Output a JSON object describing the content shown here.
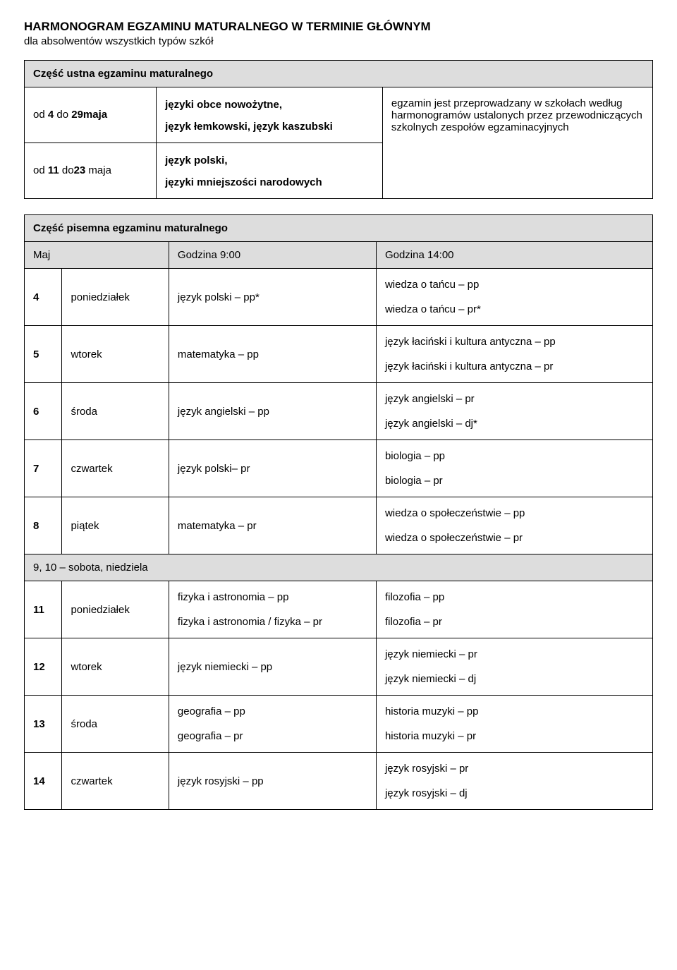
{
  "title": "HARMONOGRAM EGZAMINU MATURALNEGO W TERMINIE GŁÓWNYM",
  "subtitle": "dla absolwentów wszystkich typów szkół",
  "oral": {
    "header": "Część ustna egzaminu maturalnego",
    "rows": [
      {
        "period": "od 4 do 29maja",
        "subjects_1": "języki obce nowożytne,",
        "subjects_2": "język łemkowski, język kaszubski"
      },
      {
        "period": "od 11 do23 maja",
        "subjects_1": "język polski,",
        "subjects_2": "języki mniejszości narodowych"
      }
    ],
    "note": "egzamin jest przeprowadzany w szkołach według harmonogramów ustalonych przez przewodniczących szkolnych zespołów egzaminacyjnych"
  },
  "written": {
    "header": "Część pisemna egzaminu maturalnego",
    "col_month": "Maj",
    "col_time1": "Godzina 9:00",
    "col_time2": "Godzina 14:00",
    "rows": [
      {
        "n": "4",
        "day": "poniedziałek",
        "t9": [
          "język polski – pp*"
        ],
        "t14": [
          "wiedza o tańcu – pp",
          "wiedza o tańcu – pr*"
        ]
      },
      {
        "n": "5",
        "day": "wtorek",
        "t9": [
          "matematyka – pp"
        ],
        "t14": [
          "język łaciński i kultura antyczna – pp",
          "język łaciński i kultura antyczna – pr"
        ]
      },
      {
        "n": "6",
        "day": "środa",
        "t9": [
          "język angielski – pp"
        ],
        "t14": [
          "język angielski – pr",
          "język angielski – dj*"
        ]
      },
      {
        "n": "7",
        "day": "czwartek",
        "t9": [
          "język polski– pr"
        ],
        "t14": [
          "biologia – pp",
          "biologia – pr"
        ]
      },
      {
        "n": "8",
        "day": "piątek",
        "t9": [
          "matematyka – pr"
        ],
        "t14": [
          "wiedza o społeczeństwie – pp",
          "wiedza o społeczeństwie – pr"
        ]
      }
    ],
    "weekend": "9, 10 – sobota, niedziela",
    "rows2": [
      {
        "n": "11",
        "day": "poniedziałek",
        "t9": [
          "fizyka i astronomia – pp",
          "fizyka i astronomia / fizyka – pr"
        ],
        "t14": [
          "filozofia – pp",
          "filozofia – pr"
        ]
      },
      {
        "n": "12",
        "day": "wtorek",
        "t9": [
          "język niemiecki – pp"
        ],
        "t14": [
          "język niemiecki – pr",
          "język niemiecki – dj"
        ]
      },
      {
        "n": "13",
        "day": "środa",
        "t9": [
          "geografia – pp",
          "geografia – pr"
        ],
        "t14": [
          "historia muzyki – pp",
          " historia muzyki – pr"
        ]
      },
      {
        "n": "14",
        "day": "czwartek",
        "t9": [
          "język rosyjski – pp"
        ],
        "t14": [
          "język rosyjski – pr",
          "język rosyjski – dj"
        ]
      }
    ]
  }
}
